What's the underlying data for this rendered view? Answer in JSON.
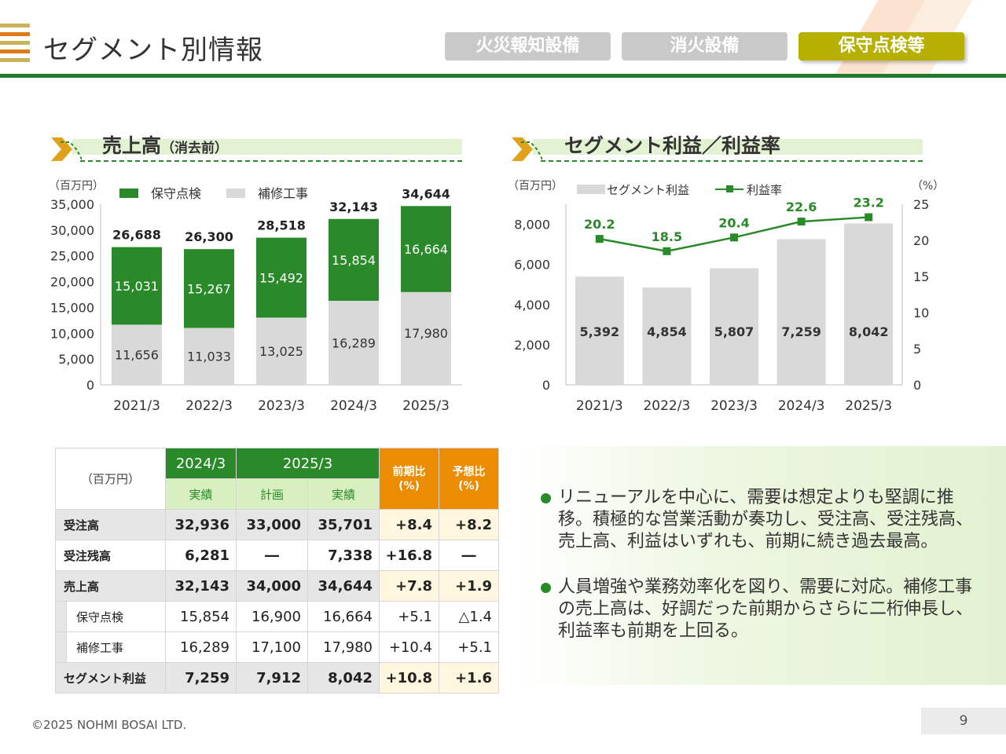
{
  "header": {
    "title": "セグメント別情報",
    "tabs": [
      {
        "label": "火災報知設備",
        "active": false
      },
      {
        "label": "消火設備",
        "active": false
      },
      {
        "label": "保守点検等",
        "active": true
      }
    ]
  },
  "colors": {
    "green": "#2a8a2a",
    "gray": "#d9d9d9",
    "orange": "#ec8c00",
    "olive": "#b7b000"
  },
  "left_section": {
    "title": "売上高",
    "subtitle": "（消去前）"
  },
  "right_section": {
    "title": "セグメント利益／利益率"
  },
  "chart_data": [
    {
      "type": "bar",
      "stacked": true,
      "unit": "（百万円）",
      "categories": [
        "2021/3",
        "2022/3",
        "2023/3",
        "2024/3",
        "2025/3"
      ],
      "series": [
        {
          "name": "保守点検",
          "values": [
            15031,
            15267,
            15492,
            15854,
            16664
          ],
          "color": "#2a8a2a"
        },
        {
          "name": "補修工事",
          "values": [
            11656,
            11033,
            13025,
            16289,
            17980
          ],
          "color": "#d9d9d9"
        }
      ],
      "totals": [
        26688,
        26300,
        28518,
        32143,
        34644
      ],
      "ylim": [
        0,
        35000
      ],
      "yticks": [
        0,
        5000,
        10000,
        15000,
        20000,
        25000,
        30000,
        35000
      ],
      "legend": "top"
    },
    {
      "type": "bar+line",
      "unit_left": "（百万円）",
      "unit_right": "（%）",
      "categories": [
        "2021/3",
        "2022/3",
        "2023/3",
        "2024/3",
        "2025/3"
      ],
      "series": [
        {
          "name": "セグメント利益",
          "type": "bar",
          "axis": "left",
          "values": [
            5392,
            4854,
            5807,
            7259,
            8042
          ],
          "color": "#d9d9d9"
        },
        {
          "name": "利益率",
          "type": "line",
          "axis": "right",
          "values": [
            20.2,
            18.5,
            20.4,
            22.6,
            23.2
          ],
          "color": "#2a8a2a"
        }
      ],
      "ylim_left": [
        0,
        9000
      ],
      "yticks_left": [
        0,
        2000,
        4000,
        6000,
        8000
      ],
      "ylim_right": [
        0,
        25
      ],
      "yticks_right": [
        0,
        5,
        10,
        15,
        20,
        25
      ],
      "legend": "top"
    }
  ],
  "table": {
    "unit": "（百万円）",
    "col_2024": "2024/3",
    "col_2025": "2025/3",
    "sub_actual": "実績",
    "sub_plan": "計画",
    "yoy": "前期比",
    "vs_forecast": "予想比",
    "pct": "(%)",
    "rows": [
      {
        "label": "受注高",
        "v2024": "32,936",
        "plan": "33,000",
        "actual": "35,701",
        "yoy": "+8.4",
        "fc": "+8.2",
        "bold": true
      },
      {
        "label": "受注残高",
        "v2024": "6,281",
        "plan": "―",
        "actual": "7,338",
        "yoy": "+16.8",
        "fc": "―",
        "bold": true
      },
      {
        "label": "売上高",
        "v2024": "32,143",
        "plan": "34,000",
        "actual": "34,644",
        "yoy": "+7.8",
        "fc": "+1.9",
        "bold": true
      },
      {
        "label": "保守点検",
        "v2024": "15,854",
        "plan": "16,900",
        "actual": "16,664",
        "yoy": "+5.1",
        "fc": "△1.4",
        "bold": false
      },
      {
        "label": "補修工事",
        "v2024": "16,289",
        "plan": "17,100",
        "actual": "17,980",
        "yoy": "+10.4",
        "fc": "+5.1",
        "bold": false
      },
      {
        "label": "セグメント利益",
        "v2024": "7,259",
        "plan": "7,912",
        "actual": "8,042",
        "yoy": "+10.8",
        "fc": "+1.6",
        "bold": true
      }
    ]
  },
  "bullets": [
    "リニューアルを中心に、需要は想定よりも堅調に推移。積極的な営業活動が奏功し、受注高、受注残高、売上高、利益はいずれも、前期に続き過去最高。",
    "人員増強や業務効率化を図り、需要に対応。補修工事の売上高は、好調だった前期からさらに二桁伸長し、利益率も前期を上回る。"
  ],
  "footer": {
    "copyright": "©2025 NOHMI BOSAI LTD.",
    "page": "9"
  }
}
